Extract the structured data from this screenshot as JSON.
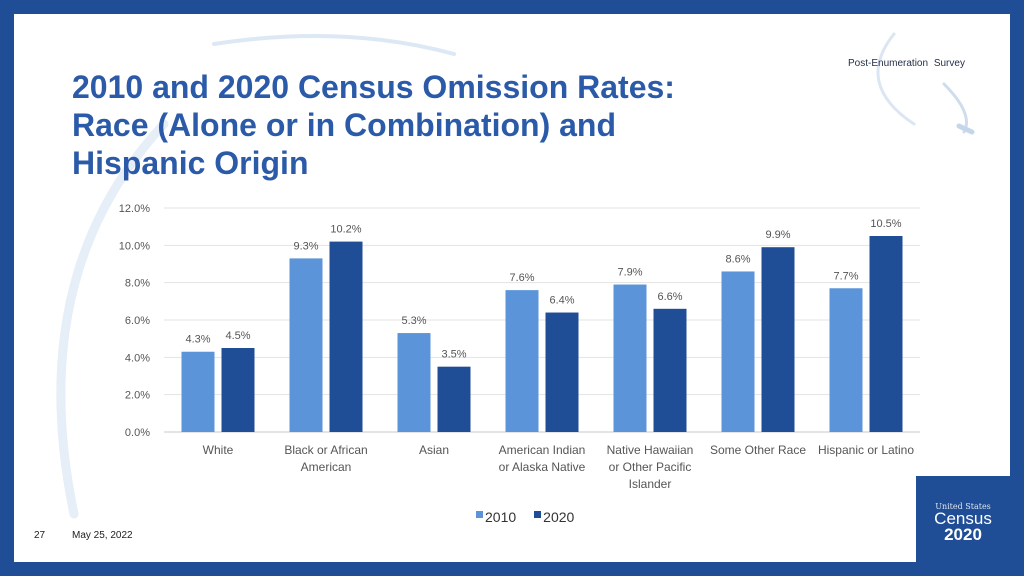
{
  "header": {
    "survey_label": "Post-Enumeration  Survey",
    "title_lines": [
      "2010 and 2020 Census Omission Rates:",
      "Race (Alone or in Combination) and",
      "Hispanic Origin"
    ]
  },
  "footer": {
    "page_number": "27",
    "date": "May 25, 2022"
  },
  "logo": {
    "line1": "United States",
    "line2": "Census",
    "line3": "2020"
  },
  "colors": {
    "series_2010": "#5b94d9",
    "series_2020": "#1f4e96",
    "title": "#2a5aa8",
    "frame": "#1f4e96"
  },
  "chart_data": {
    "type": "bar",
    "categories": [
      [
        "White"
      ],
      [
        "Black or African",
        "American"
      ],
      [
        "Asian"
      ],
      [
        "American Indian",
        "or Alaska Native"
      ],
      [
        "Native Hawaiian",
        "or Other Pacific",
        "Islander"
      ],
      [
        "Some Other Race"
      ],
      [
        "Hispanic or Latino"
      ]
    ],
    "series": [
      {
        "name": "2010",
        "values": [
          4.3,
          9.3,
          5.3,
          7.6,
          7.9,
          8.6,
          7.7
        ],
        "labels": [
          "4.3%",
          "9.3%",
          "5.3%",
          "7.6%",
          "7.9%",
          "8.6%",
          "7.7%"
        ]
      },
      {
        "name": "2020",
        "values": [
          4.5,
          10.2,
          3.5,
          6.4,
          6.6,
          9.9,
          10.5
        ],
        "labels": [
          "4.5%",
          "10.2%",
          "3.5%",
          "6.4%",
          "6.6%",
          "9.9%",
          "10.5%"
        ]
      }
    ],
    "yticks": [
      "0.0%",
      "2.0%",
      "4.0%",
      "6.0%",
      "8.0%",
      "10.0%",
      "12.0%"
    ],
    "ylim": [
      0,
      12
    ],
    "title": "",
    "xlabel": "",
    "ylabel": "",
    "grid": true,
    "legend": "bottom"
  }
}
